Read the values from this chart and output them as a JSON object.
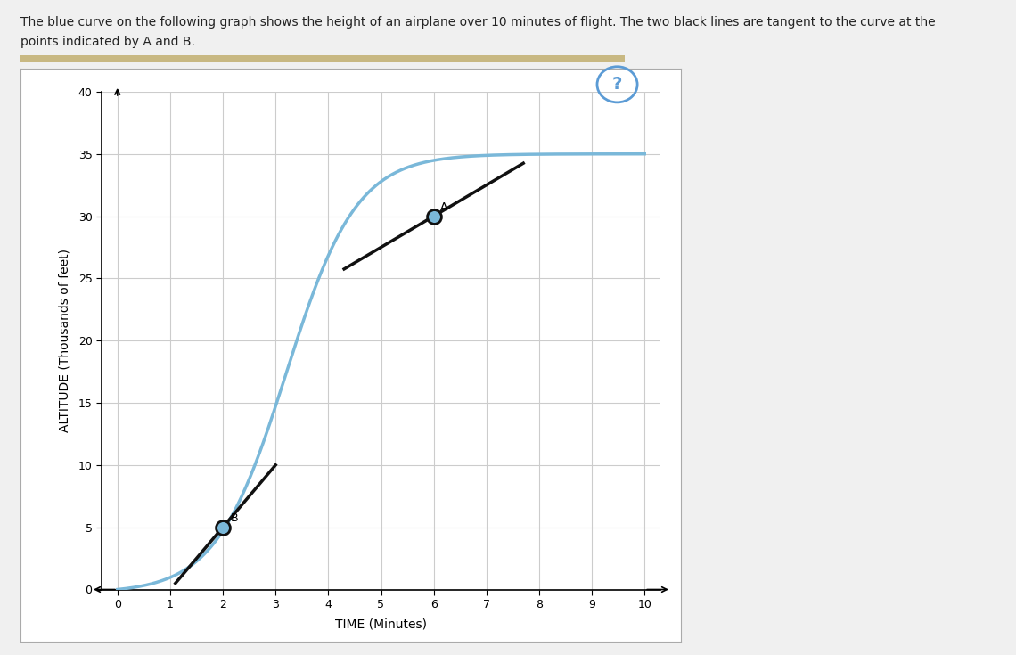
{
  "xlabel": "TIME (Minutes)",
  "ylabel": "ALTITUDE (Thousands of feet)",
  "xlim": [
    -0.3,
    10.3
  ],
  "ylim": [
    0,
    40
  ],
  "xticks": [
    0,
    1,
    2,
    3,
    4,
    5,
    6,
    7,
    8,
    9,
    10
  ],
  "yticks": [
    0,
    5,
    10,
    15,
    20,
    25,
    30,
    35,
    40
  ],
  "curve_color": "#7ab8d9",
  "tangent_color": "#111111",
  "point_A_x": 6,
  "point_A_y": 30,
  "point_B_x": 2,
  "point_B_y": 5,
  "tangent_A_slope": 2.5,
  "tangent_B_slope": 5.0,
  "tangent_A_x0": 4.3,
  "tangent_A_x1": 7.7,
  "tangent_B_x0": 1.1,
  "tangent_B_x1": 3.0,
  "bg_color": "#ffffff",
  "fig_bg_color": "#f0f0f0",
  "grid_color": "#cccccc",
  "point_circle_color": "#7ab8d9",
  "point_circle_edge": "#111111",
  "point_circle_size": 130,
  "label_fontsize": 9,
  "axis_label_fontsize": 10,
  "curve_k": 1.5,
  "curve_t0": 3.2,
  "curve_ymax": 35.0,
  "header_line1": "The blue curve on the following graph shows the height of an airplane over 10 minutes of flight. The two black lines are tangent to the curve at the",
  "header_line2": "points indicated by A and B.",
  "tan_bar_color": "#c8b882",
  "qmark_color": "#5b9bd5",
  "qmark_edge_color": "#5b9bd5"
}
